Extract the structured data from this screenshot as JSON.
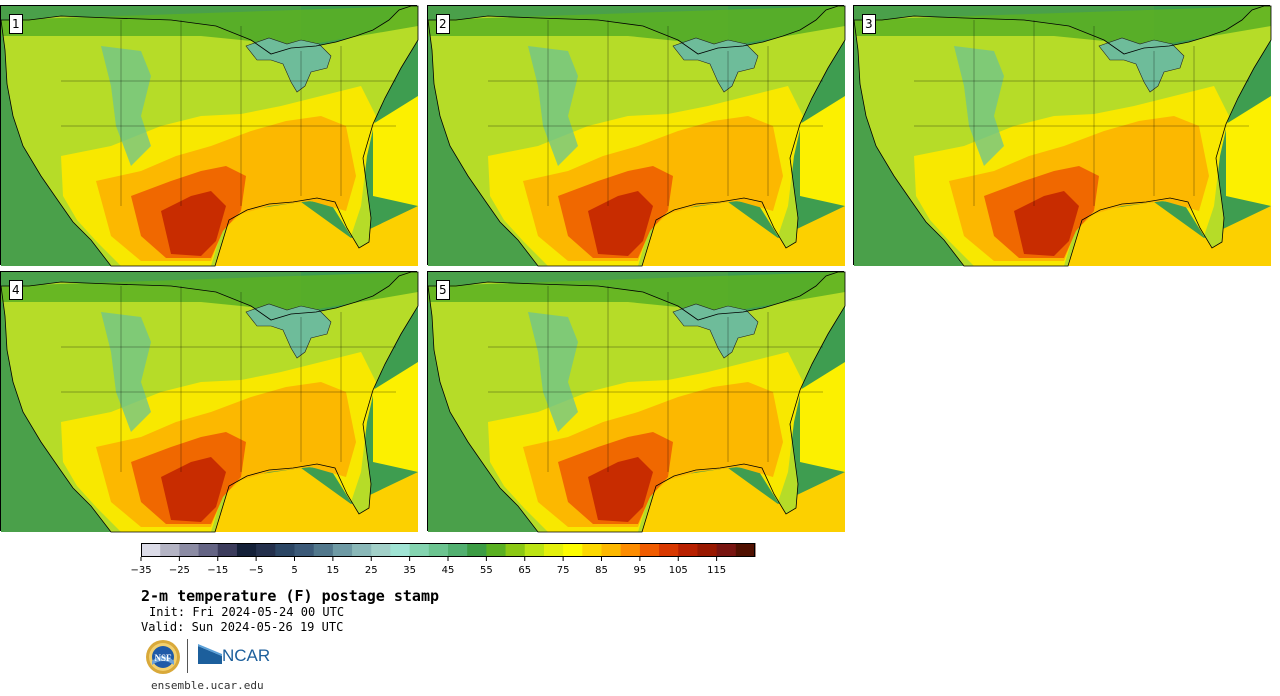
{
  "stamps": [
    {
      "label": "1",
      "variant": 0
    },
    {
      "label": "2",
      "variant": 1
    },
    {
      "label": "3",
      "variant": 2
    },
    {
      "label": "4",
      "variant": 3
    },
    {
      "label": "5",
      "variant": 4
    }
  ],
  "colorbar": {
    "colors": [
      "#dcdce8",
      "#b4b4c4",
      "#8c8ca4",
      "#646484",
      "#3c3c5c",
      "#142038",
      "#24304c",
      "#2c4664",
      "#3c5a78",
      "#52788c",
      "#6e9aa4",
      "#8ab8b8",
      "#a2d0c8",
      "#a0e4d4",
      "#84d4b0",
      "#6cc490",
      "#52b070",
      "#3c9c44",
      "#5ab022",
      "#8cc814",
      "#bce414",
      "#e4f00c",
      "#fcfc00",
      "#fcd800",
      "#fcb800",
      "#fc8c00",
      "#f05c00",
      "#d83800",
      "#b82000",
      "#981800",
      "#781410",
      "#501000"
    ],
    "tick_labels": [
      "−35",
      "−25",
      "−15",
      "−5",
      "5",
      "15",
      "25",
      "35",
      "45",
      "55",
      "65",
      "75",
      "85",
      "95",
      "105",
      "115"
    ]
  },
  "title": "2-m temperature (F) postage stamp",
  "init": "Init: Fri 2024-05-24 00 UTC",
  "valid": "Valid: Sun 2024-05-26 19 UTC",
  "logos": {
    "nsf": "NSF",
    "ncar": "NCAR"
  },
  "site": "ensemble.ucar.edu",
  "palette": {
    "ocean_w": "#4aa04a",
    "ocean_e": "#3e9d50",
    "canada": "#5ab022",
    "gulf": "#fcd000",
    "atlantic": "#fcf000",
    "lakes": "#6ebc9a"
  }
}
